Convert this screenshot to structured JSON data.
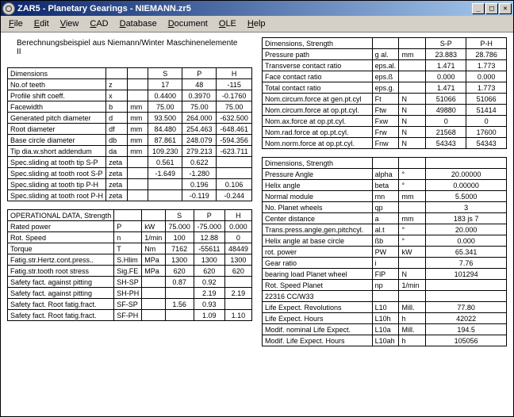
{
  "title": "ZAR5 - Planetary Gearings  -  NIEMANN.zr5",
  "menus": [
    "File",
    "Edit",
    "View",
    "CAD",
    "Database",
    "Document",
    "OLE",
    "Help"
  ],
  "subtitle": "Berechnungsbeispiel aus Niemann/Winter Maschinenelemente II",
  "dims": {
    "header": [
      "Dimensions",
      "",
      "",
      "S",
      "P",
      "H"
    ],
    "rows": [
      [
        "No.of teeth",
        "z",
        "",
        "17",
        "48",
        "-115"
      ],
      [
        "Profile shift coeff.",
        "x",
        "",
        "0.4400",
        "0.3970",
        "-0.1760"
      ],
      [
        "Facewidth",
        "b",
        "mm",
        "75.00",
        "75.00",
        "75.00"
      ],
      [
        "Generated pitch diameter",
        "d",
        "mm",
        "93.500",
        "264.000",
        "-632.500"
      ],
      [
        "Root diameter",
        "df",
        "mm",
        "84.480",
        "254.463",
        "-648.461"
      ],
      [
        "Base circle diameter",
        "db",
        "mm",
        "87.861",
        "248.079",
        "-594.356"
      ],
      [
        "Tip dia.w.short addendum",
        "da",
        "mm",
        "109.230",
        "279.213",
        "-623.711"
      ],
      [
        "Spec.sliding at tooth tip S-P",
        "zeta",
        "",
        "0.561",
        "0.622",
        ""
      ],
      [
        "Spec.sliding at tooth root S-P",
        "zeta",
        "",
        "-1.649",
        "-1.280",
        ""
      ],
      [
        "Spec.sliding at tooth tip P-H",
        "zeta",
        "",
        "",
        "0.196",
        "0.106"
      ],
      [
        "Spec.sliding at tooth root P-H",
        "zeta",
        "",
        "",
        "-0.119",
        "-0.244"
      ]
    ]
  },
  "oper": {
    "header": [
      "OPERATIONAL DATA, Strength",
      "",
      "",
      "S",
      "P",
      "H"
    ],
    "rows": [
      [
        "Rated power",
        "P",
        "kW",
        "75.000",
        "-75.000",
        "0.000"
      ],
      [
        "Rot. Speed",
        "n",
        "1/min",
        "100",
        "12.88",
        "0"
      ],
      [
        "Torque",
        "T",
        "Nm",
        "7162",
        "-55611",
        "48449"
      ],
      [
        "Fatig.str.Hertz.cont.press..",
        "S.Hlim",
        "MPa",
        "1300",
        "1300",
        "1300"
      ],
      [
        "Fatig.str.tooth root stress",
        "Sig.FE",
        "MPa",
        "620",
        "620",
        "620"
      ],
      [
        "Safety fact. against pitting",
        "SH-SP",
        "",
        "0.87",
        "0.92",
        ""
      ],
      [
        "Safety fact. against pitting",
        "SH-PH",
        "",
        "",
        "2.19",
        "2.19"
      ],
      [
        "Safety fact. Root fatig.fract.",
        "SF-SP",
        "",
        "1.56",
        "0.93",
        ""
      ],
      [
        "Safety fact. Root fatig.fract.",
        "SF-PH",
        "",
        "",
        "1.09",
        "1.10"
      ]
    ]
  },
  "strength1": {
    "header": [
      "Dimensions, Strength",
      "",
      "",
      "S-P",
      "P-H"
    ],
    "rows": [
      [
        "Pressure path",
        "g al.",
        "mm",
        "23.883",
        "28.786"
      ],
      [
        "Transverse contact ratio",
        "eps.al.",
        "",
        "1.471",
        "1.773"
      ],
      [
        "Face contact ratio",
        "eps.ß",
        "",
        "0.000",
        "0.000"
      ],
      [
        "Total contact ratio",
        "eps.g.",
        "",
        "1.471",
        "1.773"
      ],
      [
        "Nom.circum.force at gen.pt.cyl",
        "Ft",
        "N",
        "51066",
        "51066"
      ],
      [
        "Nom.circum.force at op.pt.cyl.",
        "Ftw",
        "N",
        "49880",
        "51414"
      ],
      [
        "Nom.ax.force at op.pt.cyl.",
        "Fxw",
        "N",
        "0",
        "0"
      ],
      [
        "Nom.rad.force at op.pt.cyl.",
        "Frw",
        "N",
        "21568",
        "17600"
      ],
      [
        "Nom.norm.force at op.pt.cyl.",
        "Fnw",
        "N",
        "54343",
        "54343"
      ]
    ]
  },
  "strength2": {
    "header": [
      "Dimensions, Strength",
      "",
      "",
      ""
    ],
    "rows": [
      [
        "Pressure Angle",
        "alpha",
        "°",
        "20.00000"
      ],
      [
        "Helix angle",
        "beta",
        "°",
        "0.00000"
      ],
      [
        "Normal module",
        "mn",
        "mm",
        "5.5000"
      ],
      [
        "No. Planet wheels",
        "qp",
        "",
        "3"
      ],
      [
        "Center distance",
        "a",
        "mm",
        "183 js 7"
      ],
      [
        "Trans.press.angle,gen.pitchcyl.",
        "al.t",
        "°",
        "20.000"
      ],
      [
        "Helix angle at base circle",
        "ßb",
        "°",
        "0.000"
      ],
      [
        "rot. power",
        "PW",
        "kW",
        "65.341"
      ],
      [
        "Gear ratio",
        "i",
        "",
        "7.76"
      ],
      [
        "bearing load Planet wheel",
        "FlP",
        "N",
        "101294"
      ],
      [
        "Rot. Speed Planet",
        "np",
        "1/min",
        ""
      ],
      [
        "22316 CC/W33",
        "",
        "",
        ""
      ],
      [
        "Life Expect. Revolutions",
        "L10",
        "Mill.",
        "77.80"
      ],
      [
        "Life Expect. Hours",
        "L10h",
        "h",
        "42022"
      ],
      [
        "Modif. nominal Life Expect.",
        "L10a",
        "Mill.",
        "194.5"
      ],
      [
        "Modif. Life Expect. Hours",
        "L10ah",
        "h",
        "105056"
      ]
    ]
  }
}
